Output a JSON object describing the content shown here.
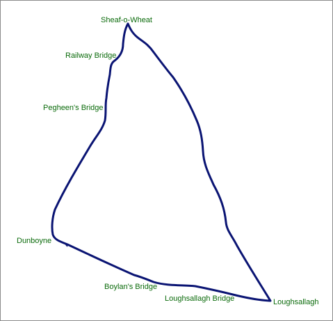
{
  "map": {
    "colors": {
      "route": "#0a1473",
      "labels": "#0a6a0a",
      "background": "#ffffff",
      "border": "#8a8a8a"
    },
    "places": [
      {
        "id": "sheaf-o-wheat",
        "name": "Sheaf-o-Wheat"
      },
      {
        "id": "railway-bridge",
        "name": "Railway Bridge"
      },
      {
        "id": "pegheens-bridge",
        "name": "Pegheen's Bridge"
      },
      {
        "id": "dunboyne",
        "name": "Dunboyne"
      },
      {
        "id": "boylans-bridge",
        "name": "Boylan's Bridge"
      },
      {
        "id": "loughsallagh-bridge",
        "name": "Loughsallagh Bridge"
      },
      {
        "id": "loughsallagh",
        "name": "Loughsallagh"
      }
    ]
  }
}
